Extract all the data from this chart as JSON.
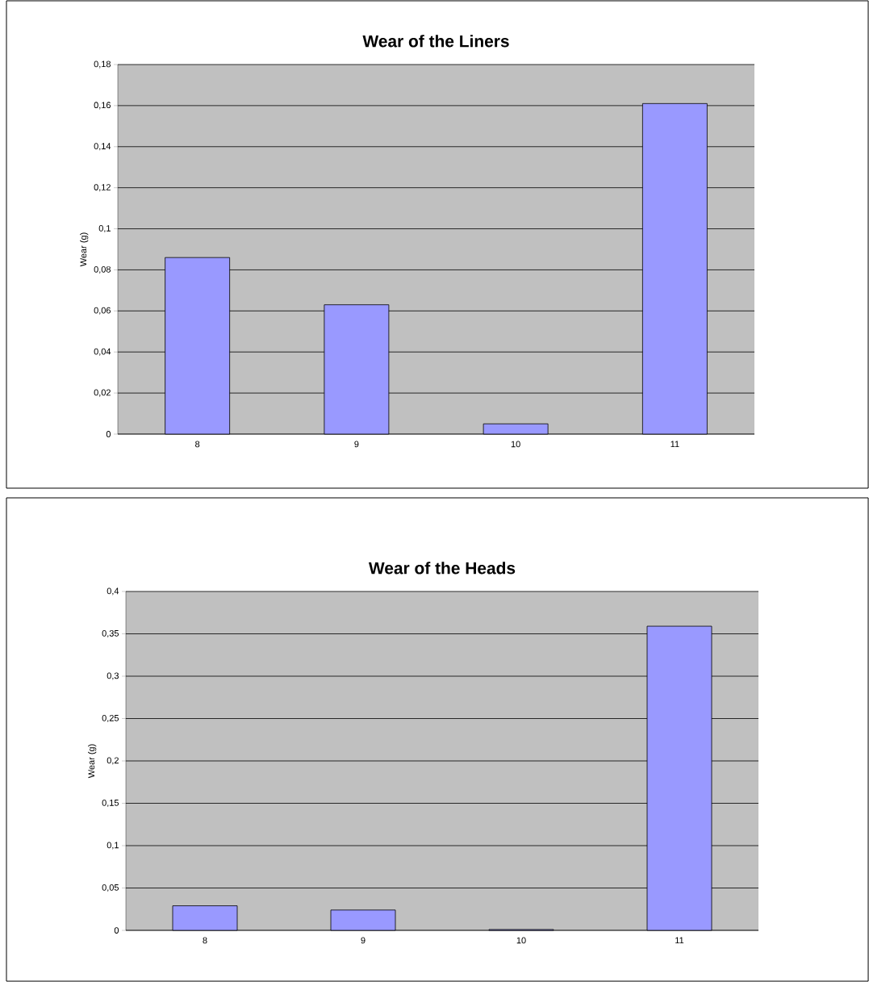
{
  "chart_data": [
    {
      "type": "bar",
      "title": "Wear of the Liners",
      "ylabel": "Wear (g)",
      "categories": [
        "8",
        "9",
        "10",
        "11"
      ],
      "values": [
        0.086,
        0.063,
        0.005,
        0.161
      ],
      "color": "#9999ff",
      "ylim": [
        0,
        0.18
      ],
      "yticks": [
        0,
        {
          "value": 0.02,
          "label": "0,02"
        },
        {
          "value": 0.04,
          "label": "0,04"
        },
        {
          "value": 0.06,
          "label": "0,06"
        },
        {
          "value": 0.08,
          "label": "0,08"
        },
        {
          "value": 0.1,
          "label": "0,1"
        },
        {
          "value": 0.12,
          "label": "0,12"
        },
        {
          "value": 0.14,
          "label": "0,14"
        },
        {
          "value": 0.16,
          "label": "0,16"
        },
        {
          "value": 0.18,
          "label": "0,18"
        }
      ],
      "grid": "y"
    },
    {
      "type": "bar",
      "title": "Wear of the Heads",
      "ylabel": "Wear (g)",
      "categories": [
        "8",
        "9",
        "10",
        "11"
      ],
      "values": [
        0.029,
        0.024,
        0.001,
        0.359
      ],
      "color": "#9999ff",
      "ylim": [
        0,
        0.4
      ],
      "yticks": [
        0,
        {
          "value": 0.05,
          "label": "0,05"
        },
        {
          "value": 0.1,
          "label": "0,1"
        },
        {
          "value": 0.15,
          "label": "0,15"
        },
        {
          "value": 0.2,
          "label": "0,2"
        },
        {
          "value": 0.25,
          "label": "0,25"
        },
        {
          "value": 0.3,
          "label": "0,3"
        },
        {
          "value": 0.35,
          "label": "0,35"
        },
        {
          "value": 0.4,
          "label": "0,4"
        }
      ],
      "grid": "y"
    }
  ]
}
